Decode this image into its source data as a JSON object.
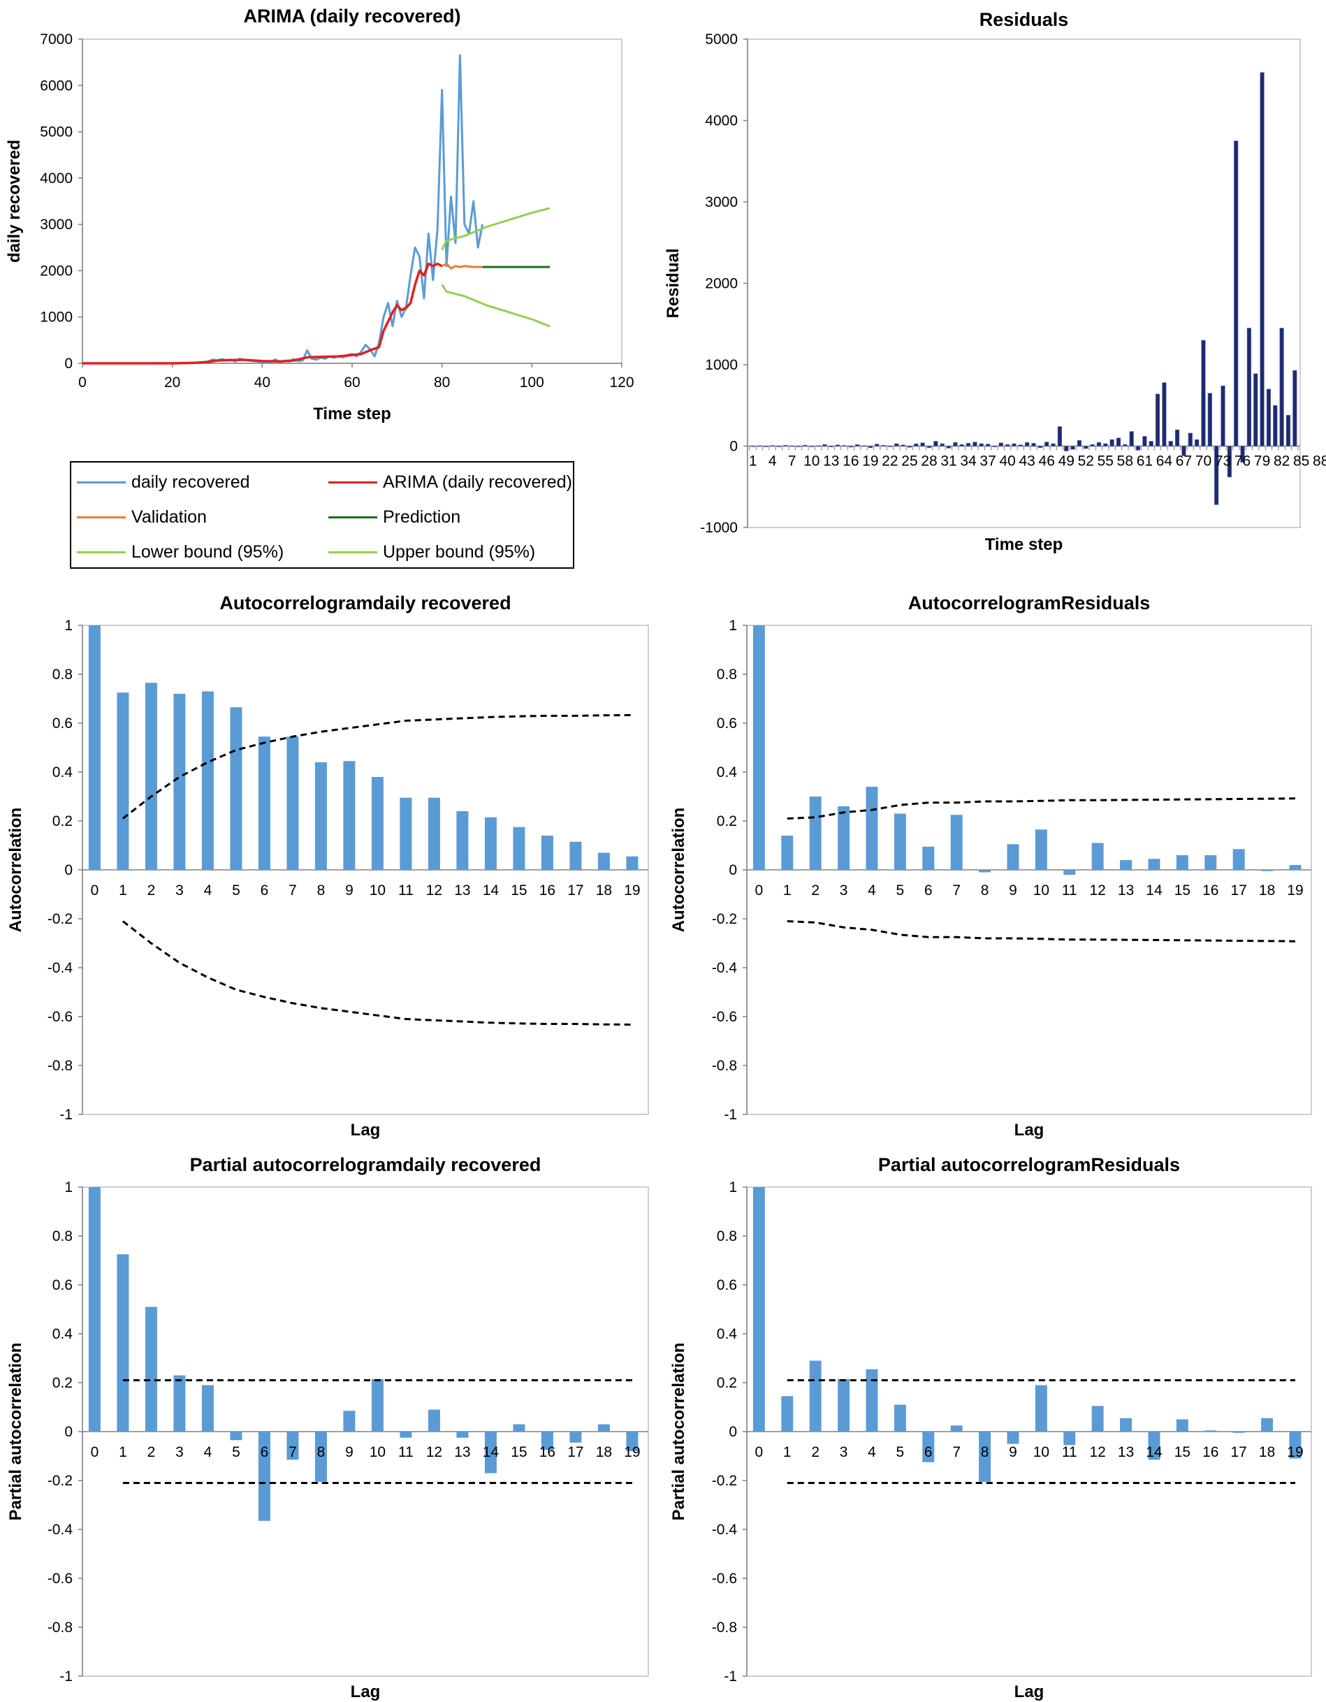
{
  "chart_data": [
    {
      "id": "arima",
      "type": "line",
      "title": "ARIMA (daily recovered)",
      "xlabel": "Time step",
      "ylabel": "daily recovered",
      "xlim": [
        0,
        120
      ],
      "ylim": [
        0,
        7000
      ],
      "xticks": [
        0,
        20,
        40,
        60,
        80,
        100,
        120
      ],
      "yticks": [
        0,
        1000,
        2000,
        3000,
        4000,
        5000,
        6000,
        7000
      ],
      "grid": false,
      "legend": "bottom",
      "series": [
        {
          "name": "daily recovered",
          "color": "#5B9BD5",
          "points": [
            [
              0,
              0
            ],
            [
              5,
              0
            ],
            [
              10,
              0
            ],
            [
              15,
              0
            ],
            [
              20,
              2
            ],
            [
              22,
              0
            ],
            [
              24,
              5
            ],
            [
              26,
              10
            ],
            [
              28,
              40
            ],
            [
              29,
              80
            ],
            [
              30,
              60
            ],
            [
              31,
              90
            ],
            [
              32,
              70
            ],
            [
              33,
              80
            ],
            [
              34,
              40
            ],
            [
              35,
              100
            ],
            [
              36,
              70
            ],
            [
              37,
              60
            ],
            [
              38,
              50
            ],
            [
              39,
              40
            ],
            [
              40,
              30
            ],
            [
              41,
              20
            ],
            [
              42,
              40
            ],
            [
              43,
              80
            ],
            [
              44,
              20
            ],
            [
              45,
              60
            ],
            [
              46,
              40
            ],
            [
              47,
              90
            ],
            [
              48,
              50
            ],
            [
              49,
              60
            ],
            [
              50,
              280
            ],
            [
              51,
              100
            ],
            [
              52,
              80
            ],
            [
              53,
              120
            ],
            [
              54,
              100
            ],
            [
              55,
              150
            ],
            [
              56,
              120
            ],
            [
              57,
              160
            ],
            [
              58,
              130
            ],
            [
              59,
              180
            ],
            [
              60,
              200
            ],
            [
              61,
              150
            ],
            [
              62,
              250
            ],
            [
              63,
              400
            ],
            [
              64,
              300
            ],
            [
              65,
              150
            ],
            [
              66,
              450
            ],
            [
              67,
              1000
            ],
            [
              68,
              1300
            ],
            [
              69,
              800
            ],
            [
              70,
              1350
            ],
            [
              71,
              1000
            ],
            [
              72,
              1200
            ],
            [
              73,
              1900
            ],
            [
              74,
              2500
            ],
            [
              75,
              2300
            ],
            [
              76,
              1400
            ],
            [
              77,
              2800
            ],
            [
              78,
              1800
            ],
            [
              79,
              2900
            ],
            [
              80,
              5900
            ],
            [
              81,
              2100
            ],
            [
              82,
              3600
            ],
            [
              83,
              2600
            ],
            [
              84,
              6650
            ],
            [
              85,
              3000
            ],
            [
              86,
              2800
            ],
            [
              87,
              3500
            ],
            [
              88,
              2500
            ],
            [
              89,
              3000
            ]
          ]
        },
        {
          "name": "ARIMA (daily recovered)",
          "color": "#E02020",
          "points": [
            [
              0,
              0
            ],
            [
              10,
              0
            ],
            [
              20,
              0
            ],
            [
              25,
              10
            ],
            [
              28,
              30
            ],
            [
              30,
              60
            ],
            [
              33,
              70
            ],
            [
              36,
              75
            ],
            [
              40,
              50
            ],
            [
              44,
              40
            ],
            [
              47,
              60
            ],
            [
              50,
              130
            ],
            [
              53,
              140
            ],
            [
              57,
              150
            ],
            [
              60,
              180
            ],
            [
              62,
              200
            ],
            [
              64,
              280
            ],
            [
              66,
              350
            ],
            [
              67,
              700
            ],
            [
              68,
              900
            ],
            [
              69,
              1100
            ],
            [
              70,
              1250
            ],
            [
              71,
              1150
            ],
            [
              72,
              1200
            ],
            [
              73,
              1300
            ],
            [
              74,
              1700
            ],
            [
              75,
              2000
            ],
            [
              76,
              1900
            ],
            [
              77,
              2150
            ],
            [
              78,
              2100
            ],
            [
              79,
              2150
            ],
            [
              80,
              2100
            ]
          ]
        },
        {
          "name": "Validation",
          "color": "#ED7D31",
          "points": [
            [
              80,
              2100
            ],
            [
              81,
              2150
            ],
            [
              82,
              2050
            ],
            [
              83,
              2100
            ],
            [
              84,
              2080
            ],
            [
              85,
              2100
            ],
            [
              87,
              2080
            ],
            [
              89,
              2080
            ]
          ]
        },
        {
          "name": "Prediction",
          "color": "#1E6B1E",
          "points": [
            [
              89,
              2080
            ],
            [
              104,
              2080
            ]
          ]
        },
        {
          "name": "Lower bound (95%)",
          "color": "#92D050",
          "points": [
            [
              80,
              1700
            ],
            [
              81,
              1550
            ],
            [
              85,
              1450
            ],
            [
              90,
              1250
            ],
            [
              95,
              1100
            ],
            [
              100,
              950
            ],
            [
              104,
              800
            ]
          ]
        },
        {
          "name": "Upper bound (95%)",
          "color": "#92D050",
          "points": [
            [
              80,
              2450
            ],
            [
              81,
              2650
            ],
            [
              85,
              2750
            ],
            [
              90,
              2950
            ],
            [
              95,
              3100
            ],
            [
              100,
              3250
            ],
            [
              104,
              3350
            ]
          ]
        }
      ]
    },
    {
      "id": "residuals",
      "type": "bar",
      "title": "Residuals",
      "xlabel": "Time step",
      "ylabel": "Residual",
      "ylim": [
        -1000,
        5000
      ],
      "yticks": [
        -1000,
        0,
        1000,
        2000,
        3000,
        4000,
        5000
      ],
      "xticklabels": [
        "1",
        "4",
        "7",
        "10",
        "13",
        "16",
        "19",
        "22",
        "25",
        "28",
        "31",
        "34",
        "37",
        "40",
        "43",
        "46",
        "49",
        "52",
        "55",
        "58",
        "61",
        "64",
        "67",
        "70",
        "73",
        "76",
        "79",
        "82",
        "85",
        "88"
      ],
      "bar_color": "#1F2A6B",
      "values": [
        2,
        5,
        -3,
        8,
        -5,
        10,
        4,
        -6,
        12,
        -8,
        6,
        20,
        -10,
        15,
        8,
        -12,
        18,
        6,
        -20,
        25,
        10,
        -8,
        30,
        15,
        -15,
        28,
        40,
        -20,
        60,
        30,
        -25,
        45,
        20,
        35,
        50,
        30,
        25,
        -10,
        40,
        20,
        30,
        15,
        45,
        35,
        -20,
        50,
        30,
        240,
        -60,
        -40,
        70,
        -30,
        20,
        45,
        30,
        80,
        100,
        20,
        180,
        -50,
        120,
        60,
        640,
        780,
        60,
        200,
        -120,
        160,
        80,
        1300,
        650,
        -720,
        740,
        -380,
        3750,
        -200,
        1450,
        890,
        4590,
        700,
        500,
        1450,
        380,
        930
      ]
    },
    {
      "id": "acf-daily",
      "type": "bar",
      "title": "Autocorrelogramdaily recovered",
      "xlabel": "Lag",
      "ylabel": "Autocorrelation",
      "ylim": [
        -1,
        1
      ],
      "yticks": [
        -1,
        -0.8,
        -0.6,
        -0.4,
        -0.2,
        0,
        0.2,
        0.4,
        0.6,
        0.8,
        1
      ],
      "lags": [
        0,
        1,
        2,
        3,
        4,
        5,
        6,
        7,
        8,
        9,
        10,
        11,
        12,
        13,
        14,
        15,
        16,
        17,
        18,
        19
      ],
      "bar_color": "#5B9BD5",
      "values": [
        1,
        0.725,
        0.765,
        0.72,
        0.73,
        0.665,
        0.545,
        0.545,
        0.44,
        0.445,
        0.38,
        0.295,
        0.295,
        0.24,
        0.215,
        0.175,
        0.14,
        0.115,
        0.07,
        0.055
      ],
      "conf_upper": [
        null,
        0.21,
        0.3,
        0.38,
        0.44,
        0.49,
        0.52,
        0.545,
        0.565,
        0.58,
        0.595,
        0.61,
        0.615,
        0.62,
        0.625,
        0.628,
        0.63,
        0.63,
        0.632,
        0.633
      ],
      "conf_lower": [
        null,
        -0.21,
        -0.3,
        -0.38,
        -0.44,
        -0.49,
        -0.52,
        -0.545,
        -0.565,
        -0.58,
        -0.595,
        -0.61,
        -0.615,
        -0.62,
        -0.625,
        -0.628,
        -0.63,
        -0.63,
        -0.632,
        -0.633
      ]
    },
    {
      "id": "acf-resid",
      "type": "bar",
      "title": "AutocorrelogramResiduals",
      "xlabel": "Lag",
      "ylabel": "Autocorrelation",
      "ylim": [
        -1,
        1
      ],
      "yticks": [
        -1,
        -0.8,
        -0.6,
        -0.4,
        -0.2,
        0,
        0.2,
        0.4,
        0.6,
        0.8,
        1
      ],
      "lags": [
        0,
        1,
        2,
        3,
        4,
        5,
        6,
        7,
        8,
        9,
        10,
        11,
        12,
        13,
        14,
        15,
        16,
        17,
        18,
        19
      ],
      "bar_color": "#5B9BD5",
      "values": [
        1,
        0.14,
        0.3,
        0.26,
        0.34,
        0.23,
        0.095,
        0.225,
        -0.01,
        0.105,
        0.165,
        -0.02,
        0.11,
        0.04,
        0.045,
        0.06,
        0.06,
        0.085,
        -0.005,
        0.02
      ],
      "conf_upper": [
        null,
        0.21,
        0.215,
        0.235,
        0.245,
        0.265,
        0.275,
        0.275,
        0.28,
        0.28,
        0.282,
        0.285,
        0.285,
        0.286,
        0.287,
        0.288,
        0.289,
        0.29,
        0.291,
        0.292
      ],
      "conf_lower": [
        null,
        -0.21,
        -0.215,
        -0.235,
        -0.245,
        -0.265,
        -0.275,
        -0.275,
        -0.28,
        -0.28,
        -0.282,
        -0.285,
        -0.285,
        -0.286,
        -0.287,
        -0.288,
        -0.289,
        -0.29,
        -0.291,
        -0.292
      ]
    },
    {
      "id": "pacf-daily",
      "type": "bar",
      "title": "Partial autocorrelogramdaily recovered",
      "xlabel": "Lag",
      "ylabel": "Partial autocorrelation",
      "ylim": [
        -1,
        1
      ],
      "yticks": [
        -1,
        -0.8,
        -0.6,
        -0.4,
        -0.2,
        0,
        0.2,
        0.4,
        0.6,
        0.8,
        1
      ],
      "lags": [
        0,
        1,
        2,
        3,
        4,
        5,
        6,
        7,
        8,
        9,
        10,
        11,
        12,
        13,
        14,
        15,
        16,
        17,
        18,
        19
      ],
      "bar_color": "#5B9BD5",
      "values": [
        1,
        0.725,
        0.51,
        0.23,
        0.19,
        -0.035,
        -0.365,
        -0.115,
        -0.205,
        0.085,
        0.215,
        -0.025,
        0.09,
        -0.025,
        -0.17,
        0.03,
        -0.075,
        -0.045,
        0.03,
        -0.08
      ],
      "conf_upper": [
        null,
        0.21,
        0.21,
        0.21,
        0.21,
        0.21,
        0.21,
        0.21,
        0.21,
        0.21,
        0.21,
        0.21,
        0.21,
        0.21,
        0.21,
        0.21,
        0.21,
        0.21,
        0.21,
        0.21
      ],
      "conf_lower": [
        null,
        -0.21,
        -0.21,
        -0.21,
        -0.21,
        -0.21,
        -0.21,
        -0.21,
        -0.21,
        -0.21,
        -0.21,
        -0.21,
        -0.21,
        -0.21,
        -0.21,
        -0.21,
        -0.21,
        -0.21,
        -0.21,
        -0.21
      ]
    },
    {
      "id": "pacf-resid",
      "type": "bar",
      "title": "Partial autocorrelogramResiduals",
      "xlabel": "Lag",
      "ylabel": "Partial autocorrelation",
      "ylim": [
        -1,
        1
      ],
      "yticks": [
        -1,
        -0.8,
        -0.6,
        -0.4,
        -0.2,
        0,
        0.2,
        0.4,
        0.6,
        0.8,
        1
      ],
      "lags": [
        0,
        1,
        2,
        3,
        4,
        5,
        6,
        7,
        8,
        9,
        10,
        11,
        12,
        13,
        14,
        15,
        16,
        17,
        18,
        19
      ],
      "bar_color": "#5B9BD5",
      "values": [
        1,
        0.145,
        0.29,
        0.215,
        0.255,
        0.11,
        -0.125,
        0.025,
        -0.205,
        -0.05,
        0.19,
        -0.055,
        0.105,
        0.055,
        -0.115,
        0.05,
        0.005,
        -0.005,
        0.055,
        -0.11
      ],
      "conf_upper": [
        null,
        0.21,
        0.21,
        0.21,
        0.21,
        0.21,
        0.21,
        0.21,
        0.21,
        0.21,
        0.21,
        0.21,
        0.21,
        0.21,
        0.21,
        0.21,
        0.21,
        0.21,
        0.21,
        0.21
      ],
      "conf_lower": [
        null,
        -0.21,
        -0.21,
        -0.21,
        -0.21,
        -0.21,
        -0.21,
        -0.21,
        -0.21,
        -0.21,
        -0.21,
        -0.21,
        -0.21,
        -0.21,
        -0.21,
        -0.21,
        -0.21,
        -0.21,
        -0.21,
        -0.21
      ]
    }
  ],
  "legend": {
    "items": [
      {
        "label": "daily recovered",
        "color": "#5B9BD5"
      },
      {
        "label": "ARIMA (daily recovered)",
        "color": "#E02020"
      },
      {
        "label": "Validation",
        "color": "#ED7D31"
      },
      {
        "label": "Prediction",
        "color": "#1E6B1E"
      },
      {
        "label": "Lower bound (95%)",
        "color": "#92D050"
      },
      {
        "label": "Upper bound (95%)",
        "color": "#92D050"
      }
    ]
  }
}
